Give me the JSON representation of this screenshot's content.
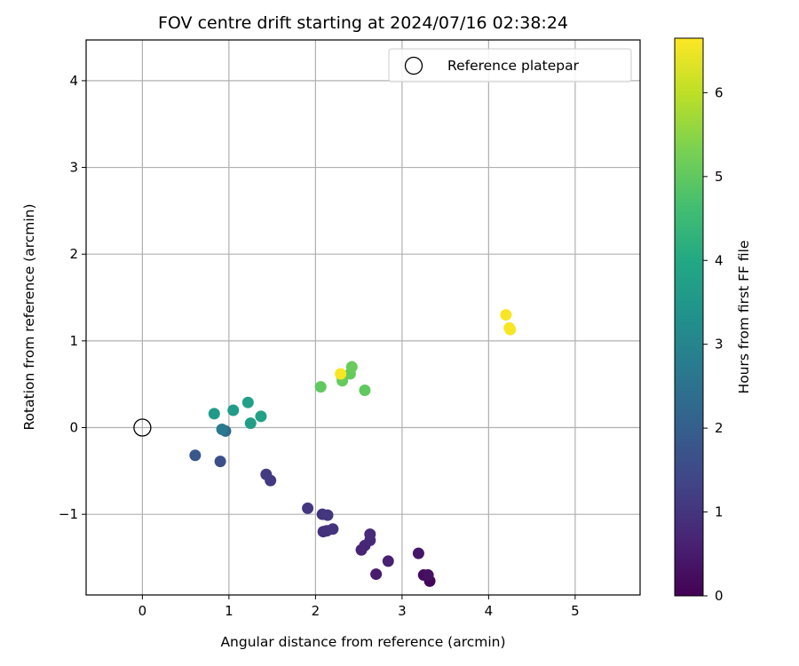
{
  "chart_data": {
    "type": "scatter",
    "title": "FOV centre drift starting at 2024/07/16 02:38:24",
    "xlabel": "Angular distance from reference (arcmin)",
    "ylabel": "Rotation from reference (arcmin)",
    "xlim": [
      -0.65,
      5.75
    ],
    "ylim": [
      -1.93,
      4.47
    ],
    "xticks": [
      0,
      1,
      2,
      3,
      4,
      5
    ],
    "yticks": [
      -1,
      0,
      1,
      2,
      3,
      4
    ],
    "xtick_labels": [
      "0",
      "1",
      "2",
      "3",
      "4",
      "5"
    ],
    "ytick_labels": [
      "−1",
      "0",
      "1",
      "2",
      "3",
      "4"
    ],
    "grid": true,
    "legend": {
      "placement": "upper-right",
      "entries": [
        "Reference platepar"
      ]
    },
    "colorbar": {
      "label": "Hours from first FF file",
      "min": 0,
      "max": 6.65,
      "ticks": [
        0,
        1,
        2,
        3,
        4,
        5,
        6
      ],
      "tick_labels": [
        "0",
        "1",
        "2",
        "3",
        "4",
        "5",
        "6"
      ],
      "colormap": "viridis"
    },
    "reference_point": {
      "x": 0,
      "y": 0
    },
    "points": [
      {
        "x": 3.32,
        "y": -1.77,
        "h": 0.1
      },
      {
        "x": 3.25,
        "y": -1.7,
        "h": 0.2
      },
      {
        "x": 3.3,
        "y": -1.7,
        "h": 0.3
      },
      {
        "x": 3.19,
        "y": -1.45,
        "h": 0.4
      },
      {
        "x": 2.7,
        "y": -1.69,
        "h": 0.5
      },
      {
        "x": 2.84,
        "y": -1.54,
        "h": 0.6
      },
      {
        "x": 2.53,
        "y": -1.41,
        "h": 0.65
      },
      {
        "x": 2.57,
        "y": -1.36,
        "h": 0.7
      },
      {
        "x": 2.63,
        "y": -1.3,
        "h": 0.75
      },
      {
        "x": 2.63,
        "y": -1.23,
        "h": 0.8
      },
      {
        "x": 2.09,
        "y": -1.2,
        "h": 0.9
      },
      {
        "x": 2.13,
        "y": -1.19,
        "h": 0.95
      },
      {
        "x": 2.2,
        "y": -1.17,
        "h": 1.0
      },
      {
        "x": 2.08,
        "y": -1.0,
        "h": 1.0
      },
      {
        "x": 2.14,
        "y": -1.01,
        "h": 1.05
      },
      {
        "x": 1.91,
        "y": -0.93,
        "h": 1.05
      },
      {
        "x": 1.48,
        "y": -0.61,
        "h": 1.1
      },
      {
        "x": 1.43,
        "y": -0.54,
        "h": 1.15
      },
      {
        "x": 0.9,
        "y": -0.39,
        "h": 1.6
      },
      {
        "x": 0.61,
        "y": -0.32,
        "h": 1.8
      },
      {
        "x": 0.96,
        "y": -0.04,
        "h": 2.3
      },
      {
        "x": 0.92,
        "y": -0.02,
        "h": 2.7
      },
      {
        "x": 0.83,
        "y": 0.16,
        "h": 3.6
      },
      {
        "x": 1.05,
        "y": 0.2,
        "h": 3.65
      },
      {
        "x": 1.25,
        "y": 0.05,
        "h": 3.7
      },
      {
        "x": 1.22,
        "y": 0.29,
        "h": 3.75
      },
      {
        "x": 1.37,
        "y": 0.13,
        "h": 3.8
      },
      {
        "x": 2.06,
        "y": 0.47,
        "h": 5.0
      },
      {
        "x": 2.57,
        "y": 0.43,
        "h": 5.0
      },
      {
        "x": 2.31,
        "y": 0.54,
        "h": 5.05
      },
      {
        "x": 2.4,
        "y": 0.62,
        "h": 5.05
      },
      {
        "x": 2.42,
        "y": 0.7,
        "h": 5.1
      },
      {
        "x": 2.3,
        "y": 0.6,
        "h": 5.15
      },
      {
        "x": 2.29,
        "y": 0.62,
        "h": 6.6
      },
      {
        "x": 4.2,
        "y": 1.3,
        "h": 6.6
      },
      {
        "x": 4.24,
        "y": 1.15,
        "h": 6.6
      },
      {
        "x": 4.25,
        "y": 1.13,
        "h": 6.6
      }
    ]
  }
}
